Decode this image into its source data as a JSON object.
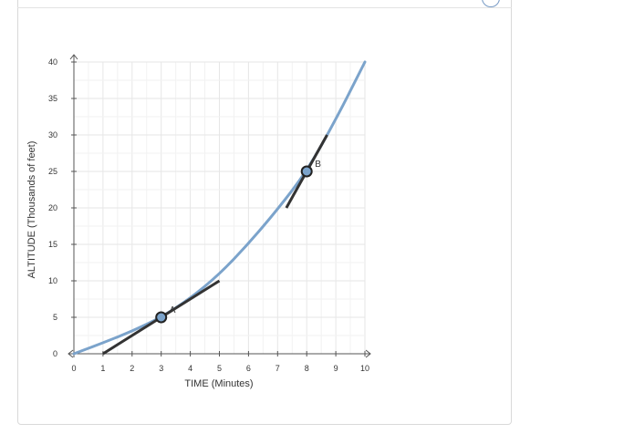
{
  "chart_data": {
    "type": "line",
    "xlabel": "TIME (Minutes)",
    "ylabel": "ALTITUDE (Thousands of feet)",
    "xlim": [
      0,
      10
    ],
    "ylim": [
      0,
      40
    ],
    "x_ticks": [
      0,
      1,
      2,
      3,
      4,
      5,
      6,
      7,
      8,
      9,
      10
    ],
    "y_ticks": [
      0,
      5,
      10,
      15,
      20,
      25,
      30,
      35,
      40
    ],
    "grid": true,
    "curve": {
      "color": "#7ba3cb",
      "x": [
        0,
        1,
        2,
        3,
        4,
        5,
        6,
        7,
        8,
        9,
        10
      ],
      "y": [
        0,
        1.5,
        3.1,
        5,
        7.6,
        10.9,
        15.1,
        19.8,
        25,
        32.1,
        40
      ]
    },
    "tangents": [
      {
        "point_label": "A",
        "x1": 1,
        "y1": 0,
        "x2": 5,
        "y2": 10
      },
      {
        "point_label": "B",
        "x1": 7.3,
        "y1": 20,
        "x2": 8.7,
        "y2": 30
      }
    ],
    "points": [
      {
        "label": "A",
        "x": 3,
        "y": 5
      },
      {
        "label": "B",
        "x": 8,
        "y": 25
      }
    ]
  }
}
